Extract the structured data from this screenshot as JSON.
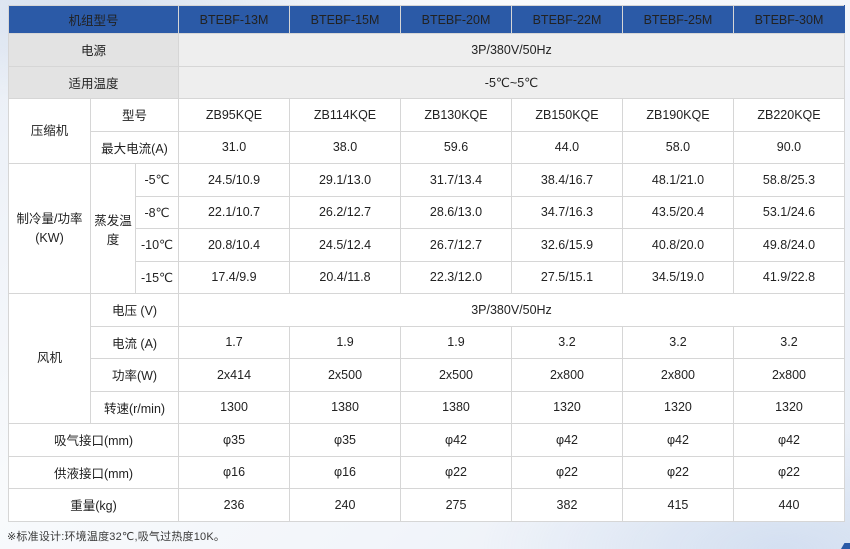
{
  "page": {
    "footnote": "※标准设计:环境温度32℃,吸气过热度10K。"
  },
  "colors": {
    "header_bg": "#2b5aa7",
    "header_border_bottom": "#1d4d99",
    "grey_label_bg": "#e3e3e3",
    "grey_value_bg": "#eeeeee",
    "grid_border": "#d6d6d6",
    "body_text": "#222222"
  },
  "table": {
    "unit_model_label": "机组型号",
    "models": [
      "BTEBF-13M",
      "BTEBF-15M",
      "BTEBF-20M",
      "BTEBF-22M",
      "BTEBF-25M",
      "BTEBF-30M"
    ],
    "power": {
      "label": "电源",
      "value": "3P/380V/50Hz"
    },
    "ambient_temp": {
      "label": "适用温度",
      "value": "-5℃~5℃"
    },
    "compressor": {
      "label": "压缩机",
      "model_row": {
        "label": "型号",
        "values": [
          "ZB95KQE",
          "ZB114KQE",
          "ZB130KQE",
          "ZB150KQE",
          "ZB190KQE",
          "ZB220KQE"
        ]
      },
      "max_current_row": {
        "label": "最大电流(A)",
        "values": [
          "31.0",
          "38.0",
          "59.6",
          "44.0",
          "58.0",
          "90.0"
        ]
      }
    },
    "cooling_capacity": {
      "label": "制冷量/功率(KW)",
      "sub_label": "蒸发温度",
      "rows": [
        {
          "label": "-5℃",
          "values": [
            "24.5/10.9",
            "29.1/13.0",
            "31.7/13.4",
            "38.4/16.7",
            "48.1/21.0",
            "58.8/25.3"
          ]
        },
        {
          "label": "-8℃",
          "values": [
            "22.1/10.7",
            "26.2/12.7",
            "28.6/13.0",
            "34.7/16.3",
            "43.5/20.4",
            "53.1/24.6"
          ]
        },
        {
          "label": "-10℃",
          "values": [
            "20.8/10.4",
            "24.5/12.4",
            "26.7/12.7",
            "32.6/15.9",
            "40.8/20.0",
            "49.8/24.0"
          ]
        },
        {
          "label": "-15℃",
          "values": [
            "17.4/9.9",
            "20.4/11.8",
            "22.3/12.0",
            "27.5/15.1",
            "34.5/19.0",
            "41.9/22.8"
          ]
        }
      ]
    },
    "fan": {
      "label": "风机",
      "voltage_row": {
        "label": "电压 (V)",
        "value": "3P/380V/50Hz"
      },
      "current_row": {
        "label": "电流 (A)",
        "values": [
          "1.7",
          "1.9",
          "1.9",
          "3.2",
          "3.2",
          "3.2"
        ]
      },
      "power_row": {
        "label": "功率(W)",
        "values": [
          "2x414",
          "2x500",
          "2x500",
          "2x800",
          "2x800",
          "2x800"
        ]
      },
      "speed_row": {
        "label": "转速(r/min)",
        "values": [
          "1300",
          "1380",
          "1380",
          "1320",
          "1320",
          "1320"
        ]
      }
    },
    "suction_row": {
      "label": "吸气接口(mm)",
      "values": [
        "φ35",
        "φ35",
        "φ42",
        "φ42",
        "φ42",
        "φ42"
      ]
    },
    "liquid_row": {
      "label": "供液接口(mm)",
      "values": [
        "φ16",
        "φ16",
        "φ22",
        "φ22",
        "φ22",
        "φ22"
      ]
    },
    "weight_row": {
      "label": "重量(kg)",
      "values": [
        "236",
        "240",
        "275",
        "382",
        "415",
        "440"
      ]
    }
  }
}
